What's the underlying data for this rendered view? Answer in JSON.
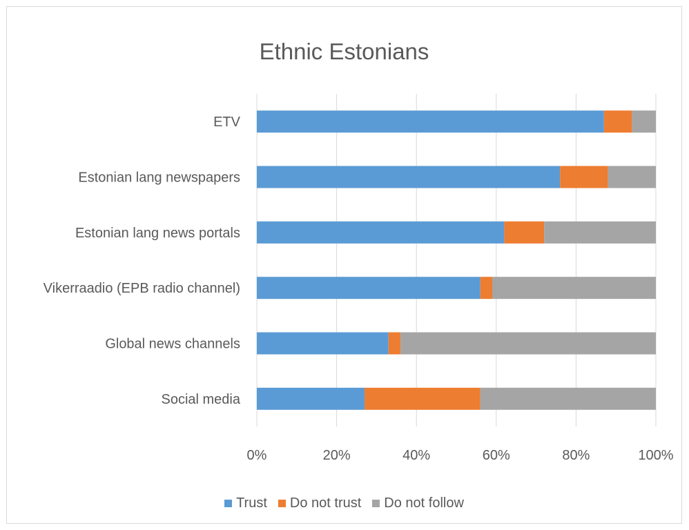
{
  "chart_data": {
    "type": "bar",
    "orientation": "horizontal",
    "stacked": true,
    "title": "Ethnic Estonians",
    "categories": [
      "ETV",
      "Estonian lang newspapers",
      "Estonian lang news portals",
      "Vikerraadio (EPB radio channel)",
      "Global news channels",
      "Social media"
    ],
    "series": [
      {
        "name": "Trust",
        "color": "#5b9bd5",
        "values": [
          87,
          76,
          62,
          56,
          33,
          27
        ]
      },
      {
        "name": "Do not trust",
        "color": "#ed7d31",
        "values": [
          7,
          12,
          10,
          3,
          3,
          29
        ]
      },
      {
        "name": "Do not follow",
        "color": "#a5a5a5",
        "values": [
          6,
          12,
          28,
          41,
          64,
          44
        ]
      }
    ],
    "xlim": [
      0,
      100
    ],
    "xticks": [
      "0%",
      "20%",
      "40%",
      "60%",
      "80%",
      "100%"
    ],
    "grid": true,
    "legend_position": "bottom"
  }
}
